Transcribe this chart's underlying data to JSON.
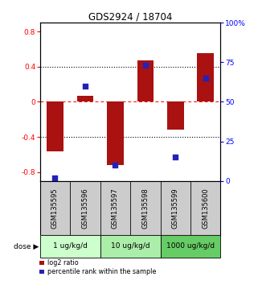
{
  "title": "GDS2924 / 18704",
  "samples": [
    "GSM135595",
    "GSM135596",
    "GSM135597",
    "GSM135598",
    "GSM135599",
    "GSM135600"
  ],
  "log2_ratio": [
    -0.56,
    0.07,
    -0.72,
    0.47,
    -0.32,
    0.55
  ],
  "percentile_rank": [
    2,
    60,
    10,
    73,
    15,
    65
  ],
  "bar_color": "#aa1111",
  "dot_color": "#2222bb",
  "ylim_left": [
    -0.9,
    0.9
  ],
  "ylim_right": [
    0,
    100
  ],
  "yticks_left": [
    -0.8,
    -0.4,
    0.0,
    0.4,
    0.8
  ],
  "yticks_right": [
    0,
    25,
    50,
    75,
    100
  ],
  "ytick_labels_left": [
    "-0.8",
    "-0.4",
    "0",
    "0.4",
    "0.8"
  ],
  "ytick_labels_right": [
    "0",
    "25",
    "50",
    "75",
    "100%"
  ],
  "dose_labels": [
    "1 ug/kg/d",
    "10 ug/kg/d",
    "1000 ug/kg/d"
  ],
  "dose_colors": [
    "#ccffcc",
    "#aaeeaa",
    "#66cc66"
  ],
  "bg_color": "#ffffff",
  "sample_bg": "#cccccc",
  "bar_width": 0.55,
  "dot_size": 18
}
